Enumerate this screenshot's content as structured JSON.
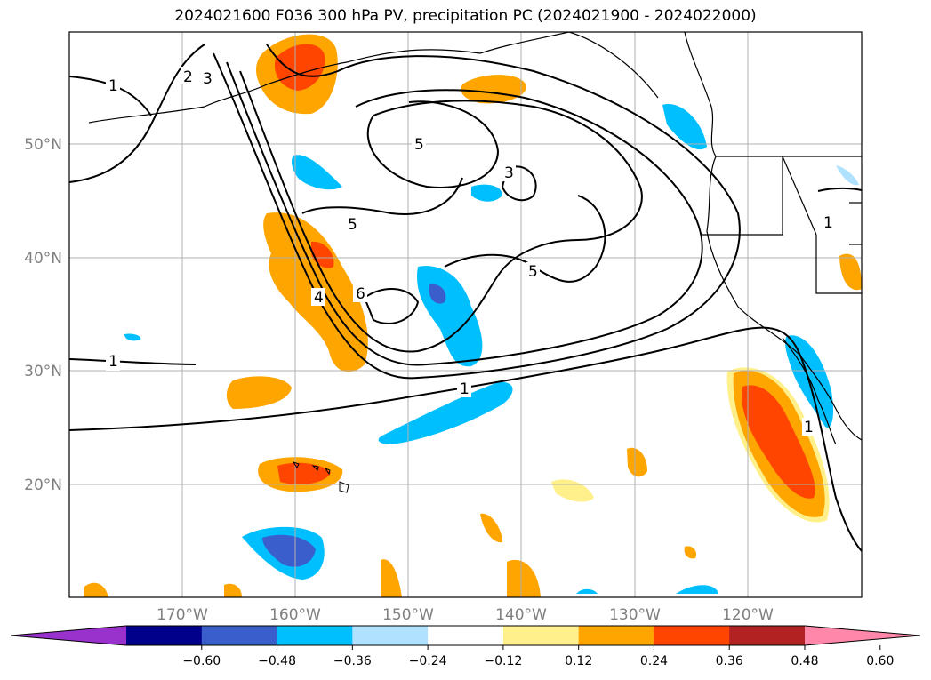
{
  "title": "2024021600 F036 300 hPa PV, precipitation PC (2024021900 - 2024022000)",
  "map": {
    "lat_labels": [
      "50°N",
      "40°N",
      "30°N",
      "20°N"
    ],
    "lon_labels": [
      "170°W",
      "160°W",
      "150°W",
      "140°W",
      "130°W",
      "120°W"
    ],
    "contour_labels": [
      "1",
      "2",
      "3",
      "5",
      "3",
      "5",
      "5",
      "6",
      "4",
      "1",
      "1",
      "1",
      "1"
    ]
  },
  "colorbar": {
    "tick_labels": [
      "−0.60",
      "−0.48",
      "−0.36",
      "−0.24",
      "−0.12",
      "0.12",
      "0.24",
      "0.36",
      "0.48",
      "0.60"
    ],
    "colors": [
      "#9932cc",
      "#00008b",
      "#3a5fcd",
      "#00bfff",
      "#b0e2ff",
      "#ffffff",
      "#fff08c",
      "#ffa500",
      "#ff4500",
      "#b22222",
      "#ff88aa"
    ]
  },
  "colors": {
    "pos_low": "#fff08c",
    "pos_mid": "#ffa500",
    "pos_high": "#ff4500",
    "neg_low": "#b0e2ff",
    "neg_mid": "#00bfff",
    "neg_high": "#3a5fcd"
  }
}
